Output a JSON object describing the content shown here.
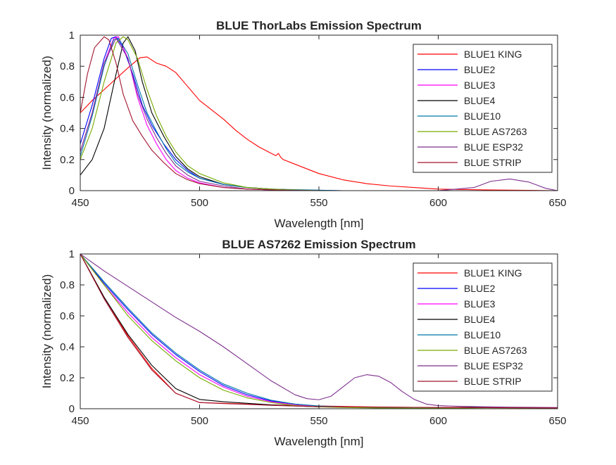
{
  "chart_data": [
    {
      "type": "line",
      "title": "BLUE ThorLabs Emission Spectrum",
      "xlabel": "Wavelength [nm]",
      "ylabel": "Intensity (normalized)",
      "xlim": [
        450,
        650
      ],
      "ylim": [
        0,
        1
      ],
      "xticks": [
        450,
        500,
        550,
        600,
        650
      ],
      "yticks": [
        0,
        0.2,
        0.4,
        0.6,
        0.8,
        1
      ],
      "x_tick_labels": [
        "450",
        "500",
        "550",
        "600",
        "650"
      ],
      "y_tick_labels": [
        "0",
        "0.2",
        "0.4",
        "0.6",
        "0.8",
        "1"
      ],
      "grid": false,
      "legend_position": "top-right",
      "series": [
        {
          "name": "BLUE1 KING",
          "color": "#ff0000",
          "x": [
            450,
            455,
            460,
            465,
            470,
            475,
            478,
            482,
            486,
            490,
            495,
            500,
            505,
            510,
            515,
            520,
            525,
            530,
            532,
            533,
            534,
            535,
            540,
            550,
            560,
            570,
            580,
            590,
            600,
            620,
            650
          ],
          "y": [
            0.5,
            0.58,
            0.65,
            0.72,
            0.79,
            0.855,
            0.86,
            0.82,
            0.8,
            0.76,
            0.67,
            0.58,
            0.52,
            0.46,
            0.39,
            0.33,
            0.28,
            0.24,
            0.225,
            0.24,
            0.215,
            0.2,
            0.17,
            0.11,
            0.07,
            0.045,
            0.03,
            0.02,
            0.01,
            0.005,
            0.0
          ]
        },
        {
          "name": "BLUE2",
          "color": "#0000ff",
          "x": [
            450,
            455,
            460,
            463,
            465,
            468,
            472,
            476,
            480,
            485,
            490,
            495,
            500,
            510,
            520,
            530,
            540,
            560,
            650
          ],
          "y": [
            0.3,
            0.55,
            0.85,
            0.98,
            0.99,
            0.92,
            0.75,
            0.55,
            0.42,
            0.3,
            0.2,
            0.13,
            0.08,
            0.04,
            0.02,
            0.01,
            0.005,
            0.0,
            0.0
          ]
        },
        {
          "name": "BLUE3",
          "color": "#ff00ff",
          "x": [
            450,
            455,
            460,
            464,
            466,
            470,
            474,
            478,
            482,
            486,
            490,
            495,
            500,
            510,
            520,
            540,
            650
          ],
          "y": [
            0.25,
            0.5,
            0.82,
            0.98,
            0.99,
            0.85,
            0.6,
            0.42,
            0.3,
            0.2,
            0.13,
            0.08,
            0.05,
            0.02,
            0.01,
            0.0,
            0.0
          ]
        },
        {
          "name": "BLUE4",
          "color": "#000000",
          "x": [
            450,
            455,
            460,
            465,
            468,
            470,
            473,
            476,
            480,
            485,
            490,
            495,
            500,
            510,
            520,
            530,
            550,
            650
          ],
          "y": [
            0.1,
            0.2,
            0.4,
            0.75,
            0.95,
            0.99,
            0.9,
            0.7,
            0.5,
            0.35,
            0.22,
            0.14,
            0.09,
            0.04,
            0.02,
            0.01,
            0.0,
            0.0
          ]
        },
        {
          "name": "BLUE10",
          "color": "#0077aa",
          "x": [
            450,
            455,
            460,
            464,
            466,
            470,
            474,
            478,
            482,
            486,
            490,
            495,
            500,
            510,
            520,
            530,
            560,
            650
          ],
          "y": [
            0.22,
            0.48,
            0.8,
            0.97,
            0.98,
            0.88,
            0.68,
            0.5,
            0.38,
            0.27,
            0.18,
            0.12,
            0.08,
            0.04,
            0.02,
            0.01,
            0.0,
            0.0
          ]
        },
        {
          "name": "BLUE AS7263",
          "color": "#77aa00",
          "x": [
            450,
            455,
            460,
            465,
            468,
            470,
            474,
            478,
            482,
            486,
            490,
            495,
            500,
            510,
            520,
            530,
            550,
            650
          ],
          "y": [
            0.2,
            0.4,
            0.7,
            0.95,
            0.99,
            0.97,
            0.85,
            0.65,
            0.48,
            0.35,
            0.25,
            0.16,
            0.11,
            0.05,
            0.02,
            0.01,
            0.0,
            0.0
          ]
        },
        {
          "name": "BLUE ESP32",
          "color": "#7e2f8e",
          "x": [
            450,
            455,
            460,
            465,
            470,
            474,
            478,
            482,
            486,
            490,
            495,
            500,
            510,
            520,
            530,
            550,
            600,
            615,
            622,
            630,
            638,
            645,
            650
          ],
          "y": [
            0.25,
            0.5,
            0.82,
            0.98,
            0.85,
            0.62,
            0.46,
            0.34,
            0.24,
            0.16,
            0.1,
            0.06,
            0.03,
            0.01,
            0.005,
            0.0,
            0.0,
            0.02,
            0.06,
            0.075,
            0.055,
            0.015,
            0.0
          ]
        },
        {
          "name": "BLUE STRIP",
          "color": "#a2142f",
          "x": [
            450,
            453,
            456,
            460,
            462,
            465,
            468,
            472,
            476,
            480,
            485,
            490,
            495,
            500,
            510,
            520,
            540,
            650
          ],
          "y": [
            0.5,
            0.75,
            0.92,
            0.99,
            0.97,
            0.82,
            0.62,
            0.45,
            0.35,
            0.26,
            0.18,
            0.11,
            0.07,
            0.045,
            0.02,
            0.01,
            0.0,
            0.0
          ]
        }
      ]
    },
    {
      "type": "line",
      "title": "BLUE AS7262 Emission Spectrum",
      "xlabel": "Wavelength [nm]",
      "ylabel": "Intensity (normalized)",
      "xlim": [
        450,
        650
      ],
      "ylim": [
        0,
        1
      ],
      "xticks": [
        450,
        500,
        550,
        600,
        650
      ],
      "yticks": [
        0,
        0.2,
        0.4,
        0.6,
        0.8,
        1
      ],
      "x_tick_labels": [
        "450",
        "500",
        "550",
        "600",
        "650"
      ],
      "y_tick_labels": [
        "0",
        "0.2",
        "0.4",
        "0.6",
        "0.8",
        "1"
      ],
      "grid": false,
      "legend_position": "top-right",
      "series": [
        {
          "name": "BLUE1 KING",
          "color": "#ff0000",
          "x": [
            450,
            460,
            470,
            480,
            490,
            500,
            510,
            520,
            530,
            540,
            550,
            560,
            570,
            580,
            600,
            620,
            650
          ],
          "y": [
            1.0,
            0.72,
            0.47,
            0.26,
            0.1,
            0.04,
            0.035,
            0.03,
            0.025,
            0.02,
            0.018,
            0.015,
            0.012,
            0.01,
            0.008,
            0.01,
            0.005
          ]
        },
        {
          "name": "BLUE2",
          "color": "#0000ff",
          "x": [
            450,
            460,
            470,
            480,
            490,
            500,
            510,
            520,
            530,
            540,
            550,
            560,
            580,
            600,
            620,
            650
          ],
          "y": [
            1.0,
            0.81,
            0.64,
            0.48,
            0.35,
            0.24,
            0.15,
            0.09,
            0.05,
            0.03,
            0.015,
            0.01,
            0.005,
            0.003,
            0.01,
            0.005
          ]
        },
        {
          "name": "BLUE3",
          "color": "#ff00ff",
          "x": [
            450,
            460,
            470,
            480,
            490,
            500,
            510,
            520,
            530,
            540,
            550,
            560,
            580,
            600,
            620,
            650
          ],
          "y": [
            1.0,
            0.8,
            0.62,
            0.46,
            0.33,
            0.22,
            0.14,
            0.08,
            0.045,
            0.025,
            0.015,
            0.01,
            0.005,
            0.003,
            0.008,
            0.005
          ]
        },
        {
          "name": "BLUE4",
          "color": "#000000",
          "x": [
            450,
            460,
            470,
            480,
            490,
            500,
            510,
            520,
            530,
            540,
            550,
            560,
            580,
            600,
            620,
            650
          ],
          "y": [
            1.0,
            0.72,
            0.48,
            0.28,
            0.13,
            0.06,
            0.045,
            0.035,
            0.025,
            0.018,
            0.012,
            0.01,
            0.008,
            0.006,
            0.01,
            0.005
          ]
        },
        {
          "name": "BLUE10",
          "color": "#0077aa",
          "x": [
            450,
            460,
            470,
            480,
            490,
            500,
            510,
            520,
            530,
            540,
            550,
            560,
            580,
            600,
            620,
            650
          ],
          "y": [
            1.0,
            0.82,
            0.65,
            0.49,
            0.36,
            0.25,
            0.16,
            0.1,
            0.055,
            0.03,
            0.018,
            0.012,
            0.006,
            0.004,
            0.008,
            0.005
          ]
        },
        {
          "name": "BLUE AS7263",
          "color": "#77aa00",
          "x": [
            450,
            460,
            470,
            480,
            490,
            500,
            510,
            520,
            530,
            540,
            550,
            560,
            580,
            600,
            620,
            650
          ],
          "y": [
            1.0,
            0.8,
            0.6,
            0.44,
            0.31,
            0.2,
            0.12,
            0.07,
            0.04,
            0.02,
            0.012,
            0.008,
            0.004,
            0.003,
            0.006,
            0.004
          ]
        },
        {
          "name": "BLUE ESP32",
          "color": "#7e2f8e",
          "x": [
            450,
            460,
            470,
            480,
            490,
            500,
            510,
            520,
            530,
            540,
            545,
            550,
            555,
            560,
            565,
            570,
            575,
            580,
            585,
            590,
            595,
            600,
            610,
            620,
            630,
            650
          ],
          "y": [
            1.0,
            0.89,
            0.79,
            0.69,
            0.59,
            0.5,
            0.4,
            0.29,
            0.18,
            0.09,
            0.065,
            0.058,
            0.08,
            0.14,
            0.2,
            0.22,
            0.21,
            0.17,
            0.11,
            0.06,
            0.03,
            0.02,
            0.015,
            0.012,
            0.01,
            0.008
          ]
        },
        {
          "name": "BLUE STRIP",
          "color": "#a2142f",
          "x": [
            450,
            460,
            470,
            480,
            490,
            500,
            510,
            520,
            530,
            540,
            550,
            560,
            580,
            600,
            620,
            650
          ],
          "y": [
            1.0,
            0.71,
            0.46,
            0.25,
            0.1,
            0.04,
            0.033,
            0.028,
            0.022,
            0.017,
            0.014,
            0.012,
            0.01,
            0.008,
            0.007,
            0.005
          ]
        }
      ]
    }
  ]
}
